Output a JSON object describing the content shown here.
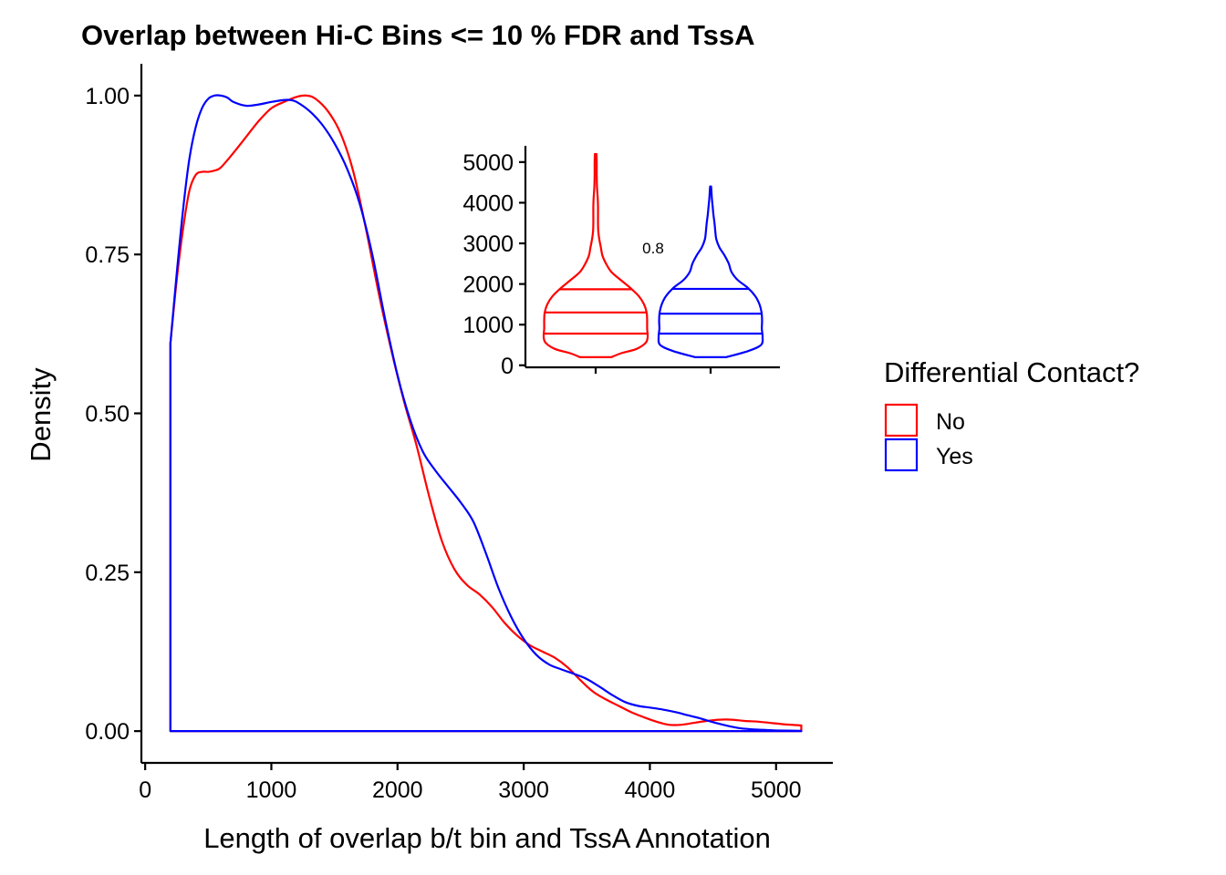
{
  "chart_data": [
    {
      "type": "area",
      "title": "Overlap between Hi-C Bins <= 10 % FDR and TssA",
      "xlabel": "Length of overlap b/t bin and TssA Annotation",
      "ylabel": "Density",
      "xlim": [
        -30,
        5450
      ],
      "ylim": [
        -0.05,
        1.05
      ],
      "x_ticks": [
        0,
        1000,
        2000,
        3000,
        4000,
        5000
      ],
      "x_tick_labels": [
        "0",
        "1000",
        "2000",
        "3000",
        "4000",
        "5000"
      ],
      "y_ticks": [
        0,
        0.25,
        0.5,
        0.75,
        1.0
      ],
      "y_tick_labels": [
        "0.00",
        "0.25",
        "0.50",
        "0.75",
        "1.00"
      ],
      "grid": false,
      "legend_position": "right",
      "legend_title": "Differential Contact?",
      "series": [
        {
          "name": "No",
          "color": "#ff0000",
          "x": [
            200,
            250,
            300,
            350,
            400,
            450,
            500,
            550,
            600,
            700,
            800,
            900,
            1000,
            1100,
            1200,
            1280,
            1350,
            1450,
            1550,
            1650,
            1750,
            1850,
            1950,
            2050,
            2150,
            2250,
            2350,
            2450,
            2550,
            2650,
            2750,
            2850,
            2950,
            3050,
            3150,
            3250,
            3350,
            3450,
            3550,
            3650,
            3750,
            3850,
            3950,
            4050,
            4150,
            4250,
            4350,
            4450,
            4550,
            4650,
            4750,
            4850,
            4950,
            5050,
            5200
          ],
          "y": [
            0.61,
            0.71,
            0.79,
            0.85,
            0.875,
            0.88,
            0.88,
            0.882,
            0.887,
            0.91,
            0.935,
            0.96,
            0.98,
            0.99,
            0.998,
            1.0,
            0.995,
            0.975,
            0.94,
            0.88,
            0.79,
            0.69,
            0.6,
            0.52,
            0.45,
            0.37,
            0.3,
            0.255,
            0.23,
            0.215,
            0.195,
            0.17,
            0.15,
            0.135,
            0.125,
            0.115,
            0.1,
            0.08,
            0.062,
            0.05,
            0.04,
            0.03,
            0.022,
            0.015,
            0.01,
            0.01,
            0.013,
            0.016,
            0.018,
            0.018,
            0.016,
            0.015,
            0.013,
            0.011,
            0.009
          ]
        },
        {
          "name": "Yes",
          "color": "#0000ff",
          "x": [
            200,
            250,
            300,
            350,
            400,
            450,
            500,
            550,
            600,
            650,
            700,
            800,
            900,
            1000,
            1100,
            1150,
            1200,
            1300,
            1400,
            1500,
            1600,
            1700,
            1800,
            1900,
            2000,
            2100,
            2200,
            2300,
            2400,
            2500,
            2600,
            2700,
            2800,
            2900,
            3000,
            3100,
            3200,
            3300,
            3400,
            3500,
            3600,
            3700,
            3800,
            3900,
            4000,
            4100,
            4200,
            4300,
            4400,
            4500,
            4600,
            4700,
            4800,
            4900,
            5000,
            5200
          ],
          "y": [
            0.61,
            0.72,
            0.82,
            0.9,
            0.95,
            0.98,
            0.995,
            1.0,
            1.0,
            0.997,
            0.99,
            0.984,
            0.986,
            0.99,
            0.993,
            0.993,
            0.99,
            0.976,
            0.955,
            0.925,
            0.885,
            0.83,
            0.75,
            0.65,
            0.56,
            0.49,
            0.44,
            0.41,
            0.385,
            0.36,
            0.33,
            0.28,
            0.225,
            0.18,
            0.145,
            0.12,
            0.105,
            0.097,
            0.09,
            0.082,
            0.07,
            0.057,
            0.046,
            0.04,
            0.037,
            0.034,
            0.03,
            0.025,
            0.02,
            0.014,
            0.009,
            0.005,
            0.003,
            0.002,
            0.001,
            0.0005
          ]
        }
      ]
    },
    {
      "type": "violin",
      "ylim": [
        -50,
        5400
      ],
      "y_ticks": [
        0,
        1000,
        2000,
        3000,
        4000,
        5000
      ],
      "y_tick_labels": [
        "0",
        "1000",
        "2000",
        "3000",
        "4000",
        "5000"
      ],
      "categories": [
        "No",
        "Yes"
      ],
      "annotation": "0.8",
      "series": [
        {
          "name": "No",
          "color": "#ff0000",
          "min": 200,
          "max": 5200,
          "quantiles": [
            780,
            1300,
            1870
          ],
          "profile": [
            [
              200,
              0.3
            ],
            [
              300,
              0.5
            ],
            [
              400,
              0.78
            ],
            [
              550,
              0.96
            ],
            [
              700,
              1.0
            ],
            [
              900,
              0.99
            ],
            [
              1100,
              0.99
            ],
            [
              1300,
              0.98
            ],
            [
              1500,
              0.93
            ],
            [
              1700,
              0.83
            ],
            [
              1900,
              0.67
            ],
            [
              2100,
              0.48
            ],
            [
              2300,
              0.3
            ],
            [
              2500,
              0.2
            ],
            [
              2700,
              0.13
            ],
            [
              2900,
              0.1
            ],
            [
              3100,
              0.07
            ],
            [
              3300,
              0.05
            ],
            [
              3500,
              0.045
            ],
            [
              3700,
              0.045
            ],
            [
              3900,
              0.045
            ],
            [
              4100,
              0.04
            ],
            [
              4400,
              0.025
            ],
            [
              4700,
              0.02
            ],
            [
              5000,
              0.02
            ],
            [
              5200,
              0.015
            ]
          ]
        },
        {
          "name": "Yes",
          "color": "#0000ff",
          "min": 200,
          "max": 4400,
          "quantiles": [
            780,
            1270,
            1880
          ],
          "profile": [
            [
              200,
              0.3
            ],
            [
              350,
              0.72
            ],
            [
              500,
              0.97
            ],
            [
              700,
              1.0
            ],
            [
              900,
              0.985
            ],
            [
              1100,
              0.99
            ],
            [
              1300,
              0.98
            ],
            [
              1500,
              0.94
            ],
            [
              1700,
              0.86
            ],
            [
              1900,
              0.72
            ],
            [
              2100,
              0.52
            ],
            [
              2300,
              0.4
            ],
            [
              2500,
              0.35
            ],
            [
              2700,
              0.27
            ],
            [
              2900,
              0.17
            ],
            [
              3100,
              0.11
            ],
            [
              3300,
              0.09
            ],
            [
              3500,
              0.075
            ],
            [
              3700,
              0.055
            ],
            [
              3900,
              0.04
            ],
            [
              4100,
              0.025
            ],
            [
              4300,
              0.015
            ],
            [
              4400,
              0.01
            ]
          ]
        }
      ]
    }
  ]
}
